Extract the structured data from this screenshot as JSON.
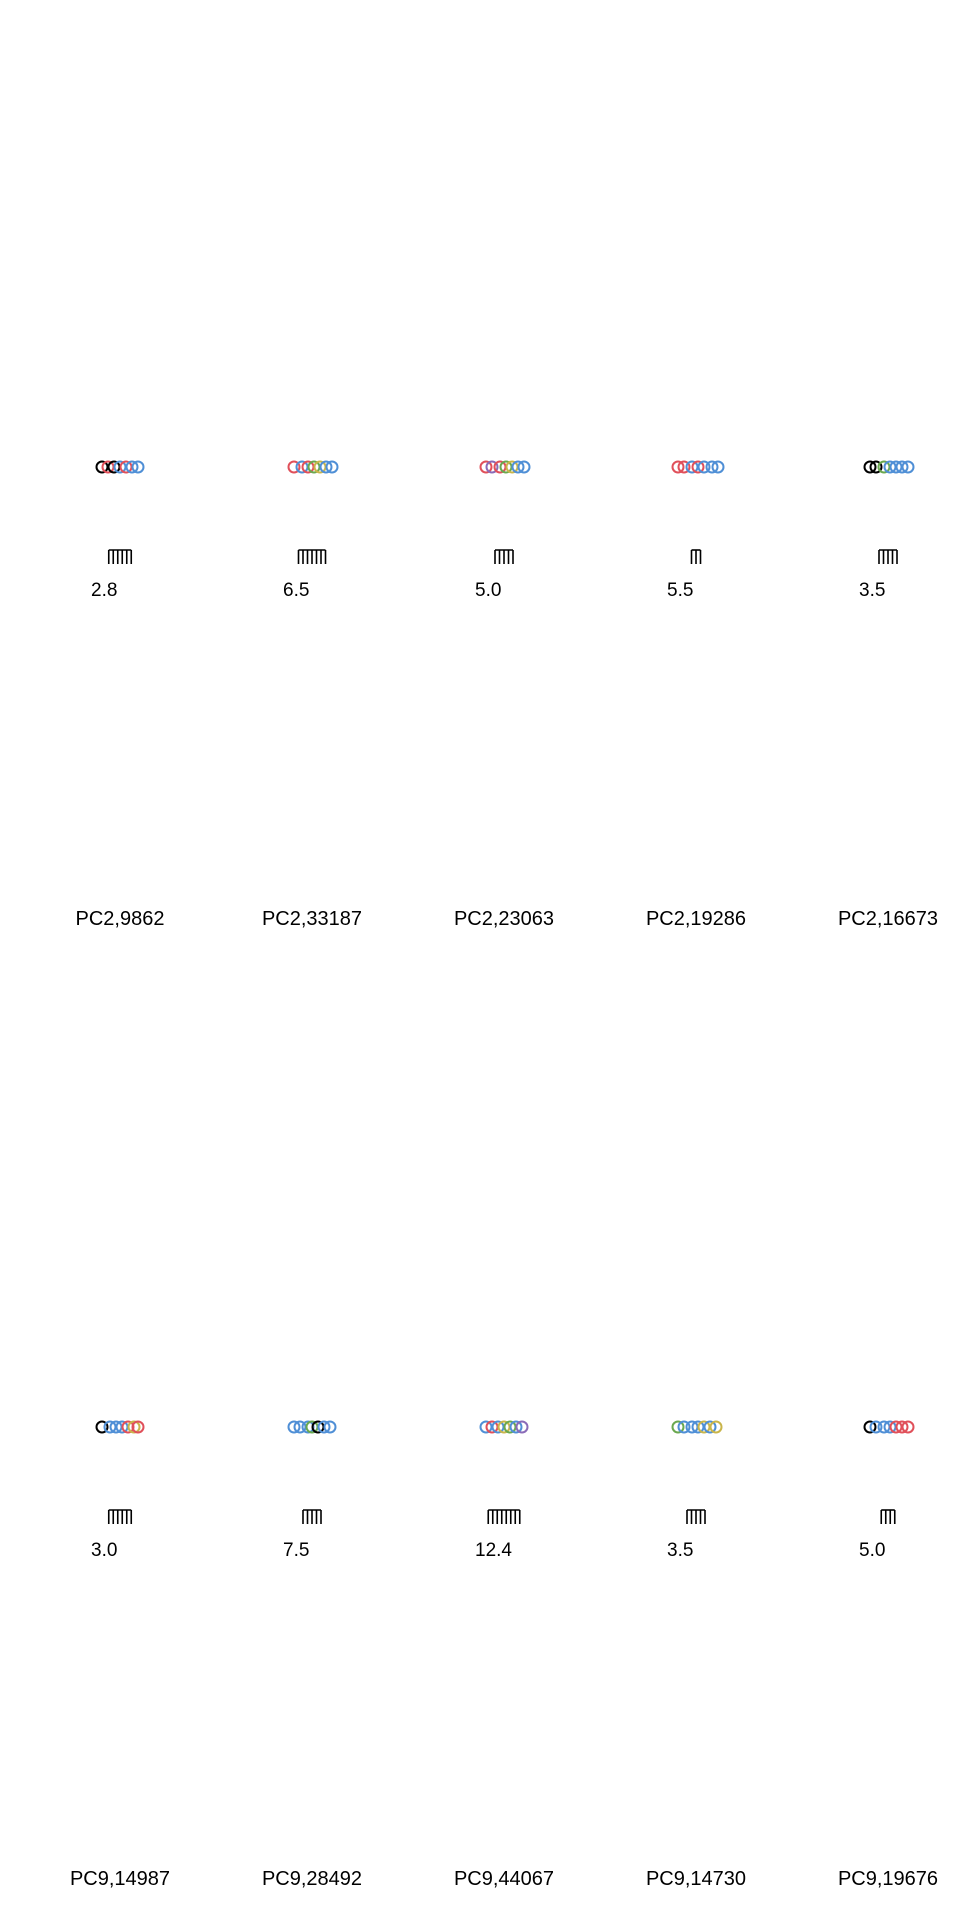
{
  "chart_data": {
    "type": "scatter",
    "description_rows": 2,
    "colors": [
      "#000000",
      "#e0505a",
      "#4f8fd6",
      "#6aa84f",
      "#c9b54a",
      "#8a6bb8"
    ],
    "panels": [
      {
        "title": "PC2,9862",
        "scale_label": "2.8",
        "scale_ticks": 6,
        "points": [
          {
            "x": -0.45,
            "c": 0
          },
          {
            "x": -0.3,
            "c": 1
          },
          {
            "x": -0.15,
            "c": 0
          },
          {
            "x": 0.0,
            "c": 2
          },
          {
            "x": 0.15,
            "c": 1
          },
          {
            "x": 0.3,
            "c": 2
          },
          {
            "x": 0.45,
            "c": 2
          }
        ]
      },
      {
        "title": "PC2,33187",
        "scale_label": "6.5",
        "scale_ticks": 7,
        "points": [
          {
            "x": -0.45,
            "c": 1
          },
          {
            "x": -0.25,
            "c": 2
          },
          {
            "x": -0.1,
            "c": 1
          },
          {
            "x": 0.05,
            "c": 3
          },
          {
            "x": 0.2,
            "c": 4
          },
          {
            "x": 0.35,
            "c": 2
          },
          {
            "x": 0.5,
            "c": 2
          }
        ]
      },
      {
        "title": "PC2,23063",
        "scale_label": "5.0",
        "scale_ticks": 5,
        "points": [
          {
            "x": -0.45,
            "c": 1
          },
          {
            "x": -0.3,
            "c": 5
          },
          {
            "x": -0.1,
            "c": 1
          },
          {
            "x": 0.05,
            "c": 3
          },
          {
            "x": 0.2,
            "c": 4
          },
          {
            "x": 0.35,
            "c": 2
          },
          {
            "x": 0.5,
            "c": 2
          }
        ]
      },
      {
        "title": "PC2,19286",
        "scale_label": "5.5",
        "scale_ticks": 3,
        "points": [
          {
            "x": -0.45,
            "c": 1
          },
          {
            "x": -0.3,
            "c": 1
          },
          {
            "x": -0.1,
            "c": 2
          },
          {
            "x": 0.05,
            "c": 1
          },
          {
            "x": 0.2,
            "c": 2
          },
          {
            "x": 0.4,
            "c": 2
          },
          {
            "x": 0.55,
            "c": 2
          }
        ]
      },
      {
        "title": "PC2,16673",
        "scale_label": "3.5",
        "scale_ticks": 5,
        "points": [
          {
            "x": -0.45,
            "c": 0
          },
          {
            "x": -0.3,
            "c": 0
          },
          {
            "x": -0.1,
            "c": 3
          },
          {
            "x": 0.05,
            "c": 2
          },
          {
            "x": 0.2,
            "c": 2
          },
          {
            "x": 0.35,
            "c": 2
          },
          {
            "x": 0.5,
            "c": 2
          }
        ]
      },
      {
        "title": "PC9,14987",
        "scale_label": "3.0",
        "scale_ticks": 6,
        "points": [
          {
            "x": -0.45,
            "c": 0
          },
          {
            "x": -0.25,
            "c": 2
          },
          {
            "x": -0.1,
            "c": 2
          },
          {
            "x": 0.05,
            "c": 2
          },
          {
            "x": 0.2,
            "c": 1
          },
          {
            "x": 0.35,
            "c": 4
          },
          {
            "x": 0.45,
            "c": 1
          }
        ]
      },
      {
        "title": "PC9,28492",
        "scale_label": "7.5",
        "scale_ticks": 5,
        "points": [
          {
            "x": -0.45,
            "c": 2
          },
          {
            "x": -0.3,
            "c": 2
          },
          {
            "x": -0.1,
            "c": 2
          },
          {
            "x": 0.0,
            "c": 3
          },
          {
            "x": 0.15,
            "c": 0
          },
          {
            "x": 0.3,
            "c": 2
          },
          {
            "x": 0.45,
            "c": 2
          }
        ]
      },
      {
        "title": "PC9,44067",
        "scale_label": "12.4",
        "scale_ticks": 8,
        "points": [
          {
            "x": -0.45,
            "c": 2
          },
          {
            "x": -0.3,
            "c": 1
          },
          {
            "x": -0.15,
            "c": 2
          },
          {
            "x": 0.0,
            "c": 4
          },
          {
            "x": 0.15,
            "c": 3
          },
          {
            "x": 0.3,
            "c": 2
          },
          {
            "x": 0.45,
            "c": 5
          }
        ]
      },
      {
        "title": "PC9,14730",
        "scale_label": "3.5",
        "scale_ticks": 5,
        "points": [
          {
            "x": -0.45,
            "c": 3
          },
          {
            "x": -0.3,
            "c": 2
          },
          {
            "x": -0.1,
            "c": 2
          },
          {
            "x": 0.05,
            "c": 2
          },
          {
            "x": 0.2,
            "c": 4
          },
          {
            "x": 0.35,
            "c": 2
          },
          {
            "x": 0.5,
            "c": 4
          }
        ]
      },
      {
        "title": "PC9,19676",
        "scale_label": "5.0",
        "scale_ticks": 4,
        "points": [
          {
            "x": -0.45,
            "c": 0
          },
          {
            "x": -0.3,
            "c": 2
          },
          {
            "x": -0.1,
            "c": 2
          },
          {
            "x": 0.05,
            "c": 2
          },
          {
            "x": 0.2,
            "c": 1
          },
          {
            "x": 0.35,
            "c": 1
          },
          {
            "x": 0.5,
            "c": 1
          }
        ]
      }
    ]
  }
}
